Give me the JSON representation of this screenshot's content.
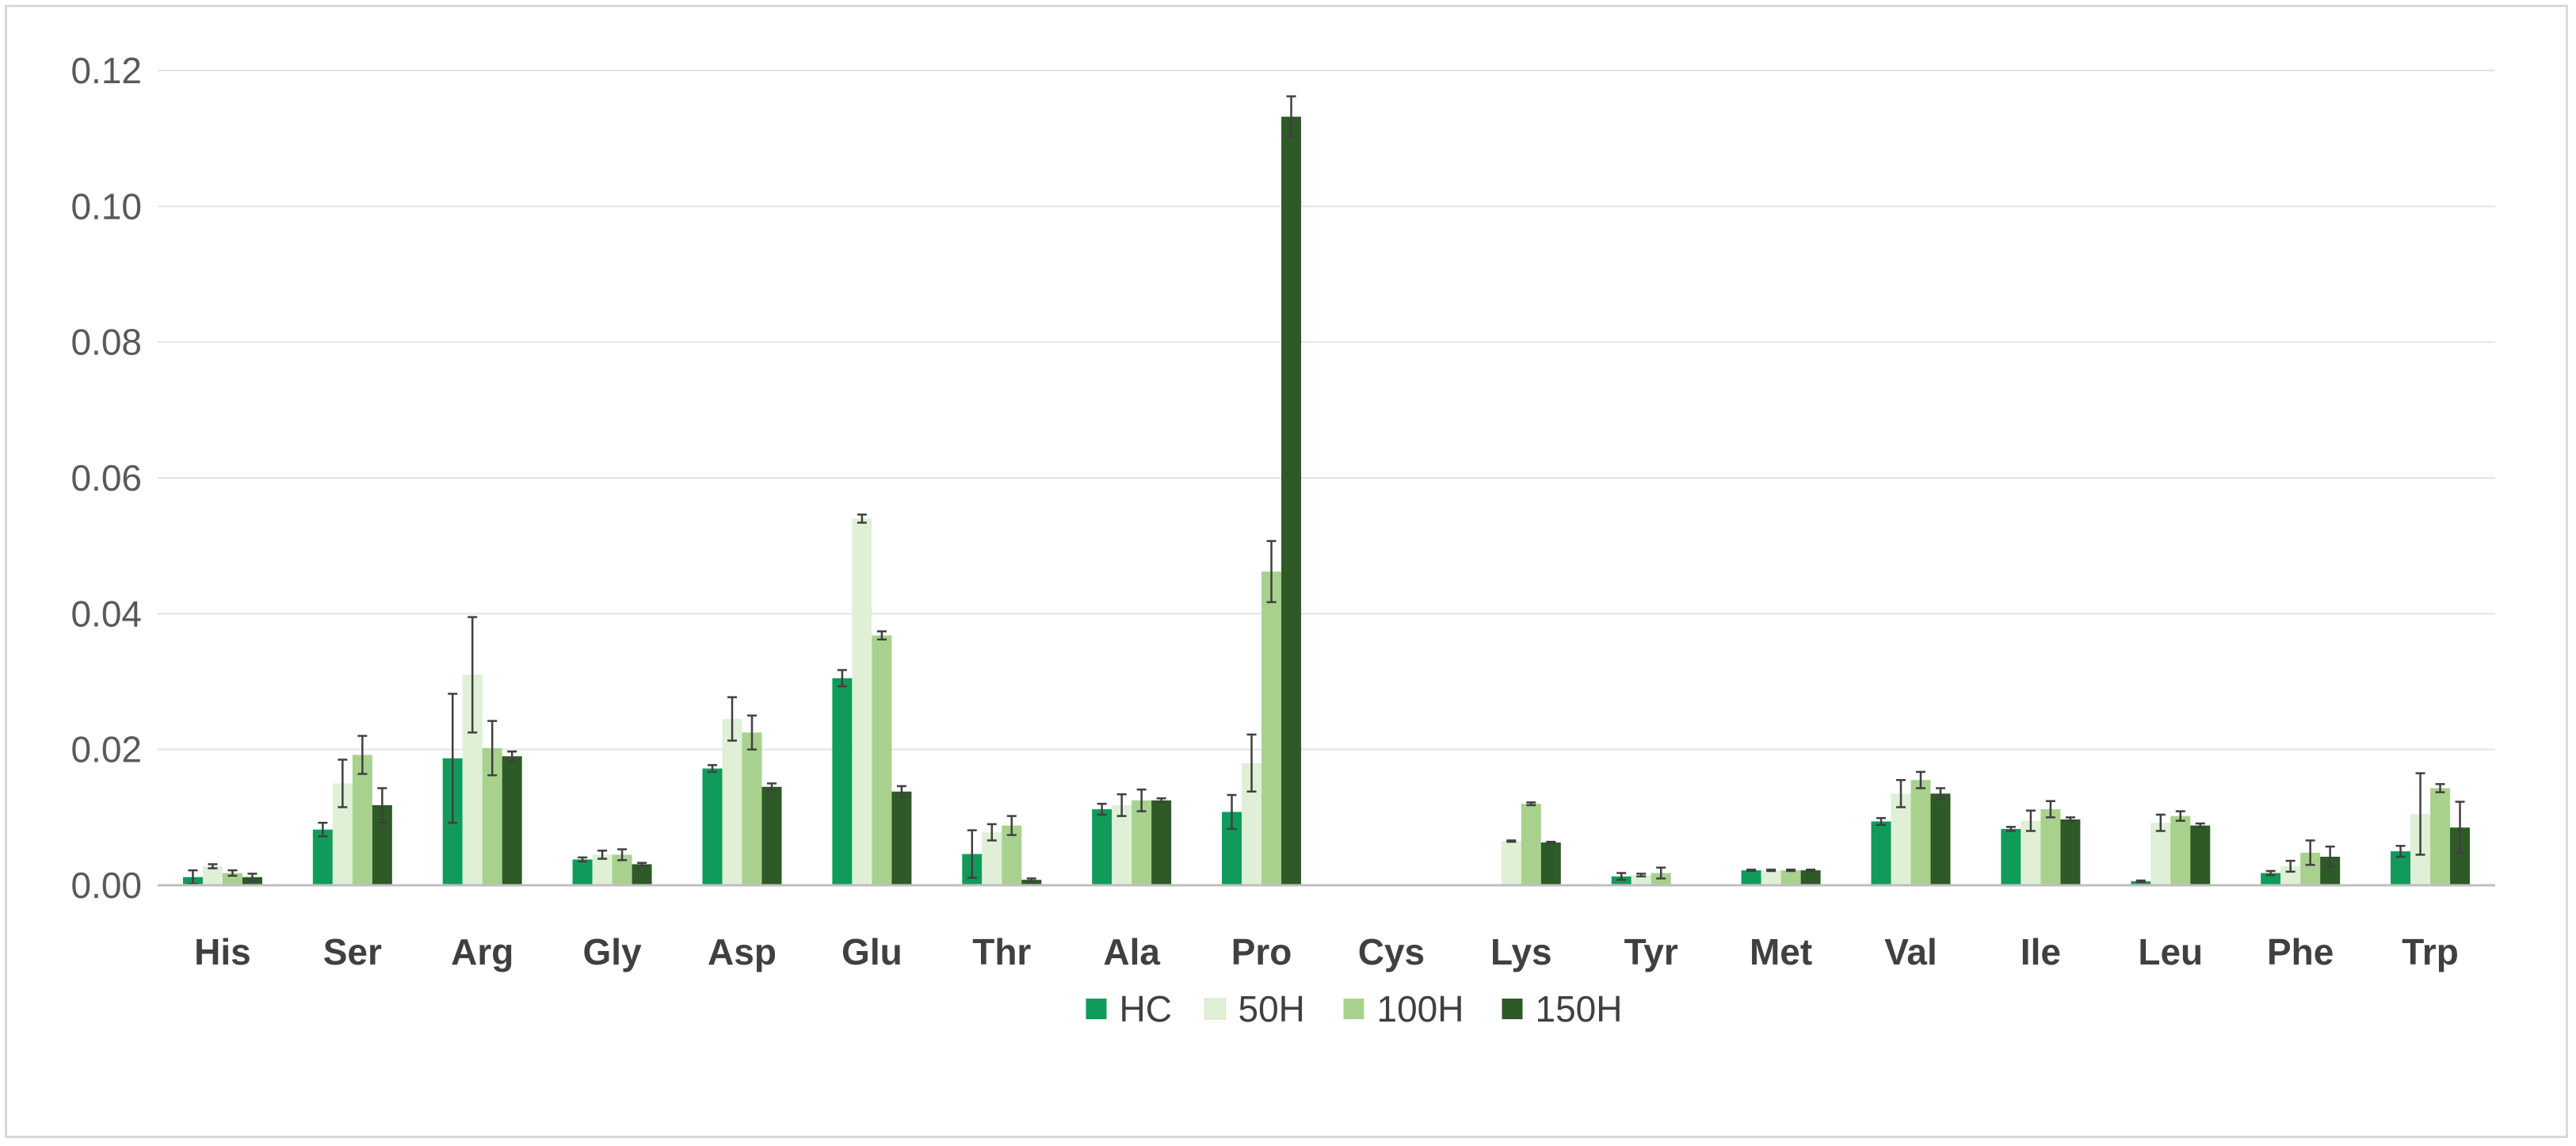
{
  "chart_data": {
    "type": "bar",
    "title": "",
    "xlabel": "",
    "ylabel": "",
    "ylim": [
      0,
      0.12
    ],
    "yticks": [
      "0.00",
      "0.02",
      "0.04",
      "0.06",
      "0.08",
      "0.10",
      "0.12"
    ],
    "grid": true,
    "legend_position": "bottom",
    "categories": [
      "His",
      "Ser",
      "Arg",
      "Gly",
      "Asp",
      "Glu",
      "Thr",
      "Ala",
      "Pro",
      "Cys",
      "Lys",
      "Tyr",
      "Met",
      "Val",
      "Ile",
      "Leu",
      "Phe",
      "Trp"
    ],
    "series": [
      {
        "name": "HC",
        "color": "#109b5a",
        "values": [
          0.0012,
          0.0082,
          0.0187,
          0.0038,
          0.0172,
          0.0305,
          0.0046,
          0.0112,
          0.0108,
          0,
          0,
          0.0013,
          0.0022,
          0.0094,
          0.0083,
          0.0006,
          0.0018,
          0.005
        ],
        "errors": [
          0.001,
          0.001,
          0.0095,
          0.0003,
          0.0005,
          0.0012,
          0.0035,
          0.0008,
          0.0025,
          0,
          0,
          0.0005,
          0.0001,
          0.0005,
          0.0003,
          0.0001,
          0.0003,
          0.0008
        ]
      },
      {
        "name": "50H",
        "color": "#dff0d6",
        "values": [
          0.0028,
          0.015,
          0.031,
          0.0045,
          0.0245,
          0.054,
          0.0078,
          0.0118,
          0.018,
          0,
          0.0065,
          0.0015,
          0.0022,
          0.0135,
          0.0095,
          0.0092,
          0.0028,
          0.0105
        ],
        "errors": [
          0.0003,
          0.0035,
          0.0085,
          0.0006,
          0.0032,
          0.0006,
          0.0012,
          0.0016,
          0.0042,
          0,
          0.0001,
          0.0002,
          0.0001,
          0.002,
          0.0015,
          0.0012,
          0.0008,
          0.006
        ]
      },
      {
        "name": "100H",
        "color": "#a9d18e",
        "values": [
          0.0018,
          0.0192,
          0.0202,
          0.0045,
          0.0225,
          0.0368,
          0.0088,
          0.0125,
          0.0462,
          0,
          0.012,
          0.0018,
          0.0022,
          0.0155,
          0.0112,
          0.0102,
          0.0048,
          0.0143
        ],
        "errors": [
          0.0004,
          0.0028,
          0.004,
          0.0008,
          0.0025,
          0.0006,
          0.0014,
          0.0016,
          0.0045,
          0,
          0.0002,
          0.0008,
          0.0001,
          0.0012,
          0.0012,
          0.0007,
          0.0018,
          0.0006
        ]
      },
      {
        "name": "150H",
        "color": "#2d5a27",
        "values": [
          0.0012,
          0.0118,
          0.019,
          0.0031,
          0.0145,
          0.0138,
          0.0008,
          0.0125,
          0.1132,
          0,
          0.0063,
          0,
          0.0022,
          0.0135,
          0.0097,
          0.0088,
          0.0042,
          0.0085
        ],
        "errors": [
          0.0005,
          0.0025,
          0.0007,
          0.0002,
          0.0005,
          0.0008,
          0.0002,
          0.0003,
          0.003,
          0,
          0.0001,
          0,
          0.0001,
          0.0008,
          0.0003,
          0.0003,
          0.0015,
          0.0038
        ]
      }
    ]
  }
}
